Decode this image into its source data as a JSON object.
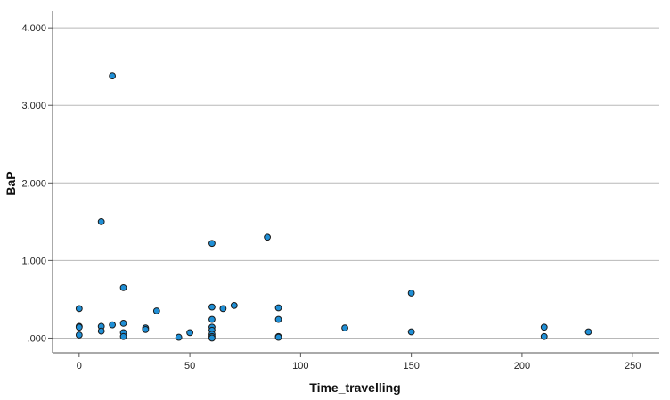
{
  "chart_data": {
    "type": "scatter",
    "xlabel": "Time_travelling",
    "ylabel": "BaP",
    "xlim": [
      -12,
      262
    ],
    "ylim": [
      -0.19,
      4.22
    ],
    "x_ticks": [
      0,
      50,
      100,
      150,
      200,
      250
    ],
    "x_tick_labels": [
      "0",
      "50",
      "100",
      "150",
      "200",
      "250"
    ],
    "y_ticks": [
      0,
      1,
      2,
      3,
      4
    ],
    "y_tick_labels": [
      ".000",
      "1.000",
      "2.000",
      "3.000",
      "4.000"
    ],
    "grid": "horizontal",
    "marker_color": "#1f8fd6",
    "marker_edge_color": "#1a1a1a",
    "points": [
      {
        "x": 0,
        "y": 0.38
      },
      {
        "x": 0,
        "y": 0.15
      },
      {
        "x": 0,
        "y": 0.14
      },
      {
        "x": 0,
        "y": 0.04
      },
      {
        "x": 10,
        "y": 1.5
      },
      {
        "x": 10,
        "y": 0.15
      },
      {
        "x": 10,
        "y": 0.09
      },
      {
        "x": 15,
        "y": 3.38
      },
      {
        "x": 15,
        "y": 0.17
      },
      {
        "x": 20,
        "y": 0.65
      },
      {
        "x": 20,
        "y": 0.19
      },
      {
        "x": 20,
        "y": 0.07
      },
      {
        "x": 20,
        "y": 0.02
      },
      {
        "x": 30,
        "y": 0.13
      },
      {
        "x": 30,
        "y": 0.11
      },
      {
        "x": 35,
        "y": 0.35
      },
      {
        "x": 45,
        "y": 0.01
      },
      {
        "x": 50,
        "y": 0.07
      },
      {
        "x": 60,
        "y": 1.22
      },
      {
        "x": 60,
        "y": 0.4
      },
      {
        "x": 60,
        "y": 0.24
      },
      {
        "x": 60,
        "y": 0.14
      },
      {
        "x": 60,
        "y": 0.1
      },
      {
        "x": 60,
        "y": 0.05
      },
      {
        "x": 60,
        "y": 0.02
      },
      {
        "x": 60,
        "y": 0.0
      },
      {
        "x": 65,
        "y": 0.38
      },
      {
        "x": 70,
        "y": 0.42
      },
      {
        "x": 85,
        "y": 1.3
      },
      {
        "x": 90,
        "y": 0.39
      },
      {
        "x": 90,
        "y": 0.24
      },
      {
        "x": 90,
        "y": 0.02
      },
      {
        "x": 90,
        "y": 0.01
      },
      {
        "x": 120,
        "y": 0.13
      },
      {
        "x": 150,
        "y": 0.58
      },
      {
        "x": 150,
        "y": 0.08
      },
      {
        "x": 210,
        "y": 0.14
      },
      {
        "x": 210,
        "y": 0.02
      },
      {
        "x": 230,
        "y": 0.08
      }
    ]
  }
}
